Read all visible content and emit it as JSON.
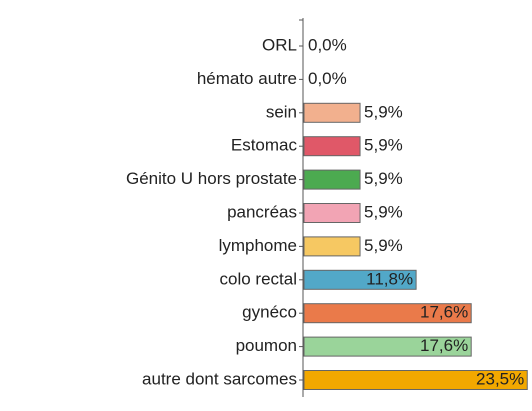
{
  "chart_data": {
    "type": "bar",
    "categories": [
      "ORL",
      "hémato autre",
      "sein",
      "Estomac",
      "Génito U hors prostate",
      "pancréas",
      "lymphome",
      "colo rectal",
      "gynéco",
      "poumon",
      "autre dont sarcomes"
    ],
    "values": [
      0.0,
      0.0,
      5.9,
      5.9,
      5.9,
      5.9,
      5.9,
      11.8,
      17.6,
      17.6,
      23.5
    ],
    "value_labels": [
      "0,0%",
      "0,0%",
      "5,9%",
      "5,9%",
      "5,9%",
      "5,9%",
      "5,9%",
      "11,8%",
      "17,6%",
      "17,6%",
      "23,5%"
    ],
    "colors": [
      null,
      null,
      "#f2b08e",
      "#e05868",
      "#4caa50",
      "#f2a4b4",
      "#f6c862",
      "#52a8c8",
      "#ea7a4a",
      "#9ad49a",
      "#f2a800"
    ]
  }
}
